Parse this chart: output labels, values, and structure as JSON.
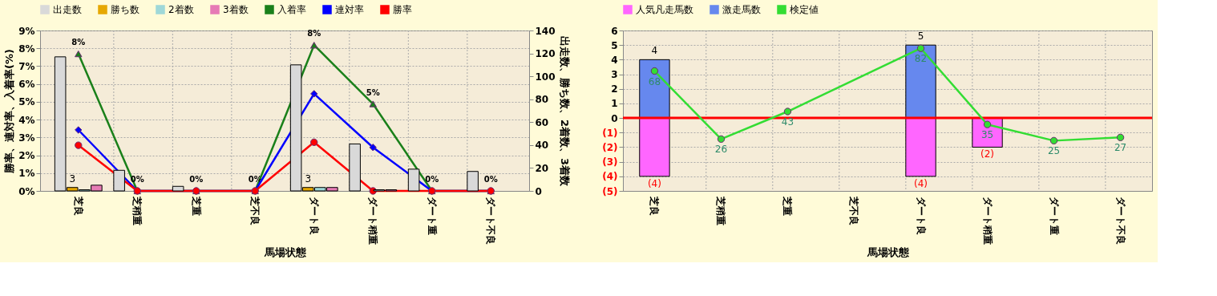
{
  "chart_data": [
    {
      "type": "bar",
      "xlabel": "馬場状態",
      "ylabel": "勝率、連対率、入着率(%)",
      "y2label": "出走数、勝ち数、2着数、3着数",
      "categories": [
        "芝良",
        "芝稍重",
        "芝重",
        "芝不良",
        "ダート良",
        "ダート稍重",
        "ダート重",
        "ダート不良"
      ],
      "series": [
        {
          "name": "出走数",
          "color": "#d9d9d9",
          "axis": "y2",
          "values": [
            117,
            18,
            4,
            0,
            110,
            41,
            19,
            17
          ]
        },
        {
          "name": "勝ち数",
          "color": "#e6a800",
          "axis": "y2",
          "values": [
            3,
            0,
            0,
            0,
            3,
            0,
            0,
            0
          ],
          "value_labels": [
            "3",
            null,
            null,
            null,
            "3",
            null,
            null,
            null
          ]
        },
        {
          "name": "2着数",
          "color": "#9fd8d8",
          "axis": "y2",
          "values": [
            1,
            0,
            0,
            0,
            3,
            1,
            0,
            0
          ]
        },
        {
          "name": "3着数",
          "color": "#e67bb5",
          "axis": "y2",
          "values": [
            5,
            0,
            0,
            0,
            3,
            1,
            0,
            0
          ]
        },
        {
          "name": "入着率",
          "type": "line",
          "color": "#1a801a",
          "marker": "triangle",
          "values": [
            7.69,
            0,
            0,
            0,
            8.18,
            4.88,
            0,
            0
          ],
          "value_labels": [
            "8%",
            "0%",
            "0%",
            "0%",
            "8%",
            "5%",
            "0%",
            "0%"
          ]
        },
        {
          "name": "連対率",
          "type": "line",
          "color": "#0000ff",
          "marker": "diamond",
          "values": [
            3.42,
            0,
            0,
            0,
            5.45,
            2.44,
            0,
            0
          ]
        },
        {
          "name": "勝率",
          "type": "line",
          "color": "#ff0000",
          "marker": "circle",
          "values": [
            2.56,
            0,
            0,
            0,
            2.73,
            0,
            0,
            0
          ]
        }
      ],
      "ylim": [
        0,
        9
      ],
      "yticks": [
        {
          "value": 0,
          "label": "0%"
        },
        {
          "value": 1,
          "label": "1%"
        },
        {
          "value": 2,
          "label": "2%"
        },
        {
          "value": 3,
          "label": "3%"
        },
        {
          "value": 4,
          "label": "4%"
        },
        {
          "value": 5,
          "label": "5%"
        },
        {
          "value": 6,
          "label": "6%"
        },
        {
          "value": 7,
          "label": "7%"
        },
        {
          "value": 8,
          "label": "8%"
        },
        {
          "value": 9,
          "label": "9%"
        }
      ],
      "y2lim": [
        0,
        140
      ],
      "y2ticks": [
        0,
        20,
        40,
        60,
        80,
        100,
        120,
        140
      ],
      "grid": true,
      "legend": "top"
    },
    {
      "type": "bar",
      "xlabel": "馬場状態",
      "stacked": true,
      "categories": [
        "芝良",
        "芝稍重",
        "芝重",
        "芝不良",
        "ダート良",
        "ダート稍重",
        "ダート重",
        "ダート不良"
      ],
      "series": [
        {
          "name": "人気凡走馬数",
          "color": "#ff66ff",
          "values": [
            -4,
            0,
            0,
            0,
            -4,
            -2,
            0,
            0
          ],
          "value_labels": [
            "(4)",
            null,
            null,
            null,
            "(4)",
            "(2)",
            null,
            null
          ]
        },
        {
          "name": "激走馬数",
          "color": "#6688ee",
          "values": [
            4,
            0,
            0,
            0,
            5,
            0,
            0,
            0
          ],
          "value_labels": [
            "4",
            null,
            null,
            null,
            "5",
            null,
            null,
            null
          ]
        },
        {
          "name": "検定値",
          "type": "line",
          "axis": "y2",
          "color": "#33dd33",
          "marker": "circle",
          "values": [
            68,
            26,
            43,
            null,
            82,
            35,
            25,
            27
          ],
          "value_labels": [
            "68",
            "26",
            "43",
            null,
            "82",
            "35",
            "25",
            "27"
          ]
        }
      ],
      "ylim": [
        -5,
        6
      ],
      "yticks": [
        {
          "value": -5,
          "label": "(5)"
        },
        {
          "value": -4,
          "label": "(4)"
        },
        {
          "value": -3,
          "label": "(3)"
        },
        {
          "value": -2,
          "label": "(2)"
        },
        {
          "value": -1,
          "label": "(1)"
        },
        0,
        1,
        2,
        3,
        4,
        5,
        6
      ],
      "y2lim": [
        -6,
        93
      ],
      "ref_lines": [
        {
          "axis": "y",
          "value": 0,
          "color": "#ff0000"
        }
      ],
      "grid": true,
      "legend": "top"
    }
  ]
}
